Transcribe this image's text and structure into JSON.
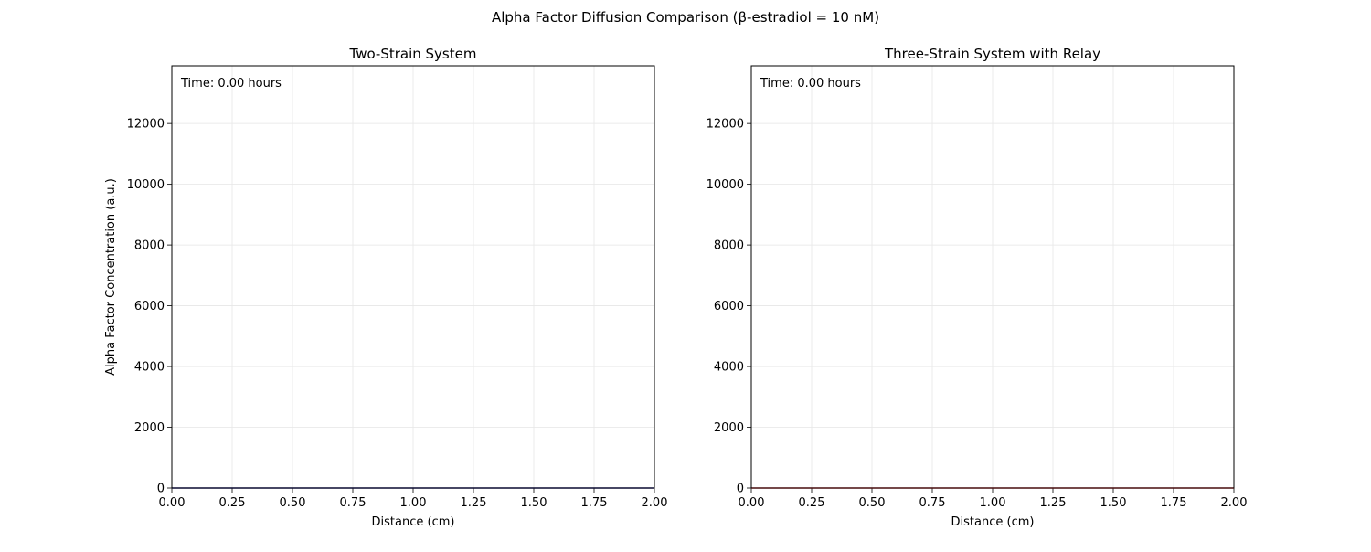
{
  "figure": {
    "suptitle": "Alpha Factor Diffusion Comparison (β-estradiol = 10 nM)"
  },
  "chart_data": [
    {
      "type": "line",
      "title": "Two-Strain System",
      "xlabel": "Distance (cm)",
      "ylabel": "Alpha Factor Concentration (a.u.)",
      "annotation": "Time: 0.00 hours",
      "xlim": [
        0,
        2.0
      ],
      "ylim": [
        0,
        13900
      ],
      "xticks": [
        0.0,
        0.25,
        0.5,
        0.75,
        1.0,
        1.25,
        1.5,
        1.75,
        2.0
      ],
      "xtick_labels": [
        "0.00",
        "0.25",
        "0.50",
        "0.75",
        "1.00",
        "1.25",
        "1.50",
        "1.75",
        "2.00"
      ],
      "yticks": [
        0,
        2000,
        4000,
        6000,
        8000,
        10000,
        12000
      ],
      "ytick_labels": [
        "0",
        "2000",
        "4000",
        "6000",
        "8000",
        "10000",
        "12000"
      ],
      "grid": true,
      "series": [
        {
          "color": "#1f1f8f",
          "x": [
            0.0,
            0.5,
            1.0,
            1.5,
            2.0
          ],
          "y": [
            0,
            0,
            0,
            0,
            0
          ]
        }
      ]
    },
    {
      "type": "line",
      "title": "Three-Strain System with Relay",
      "xlabel": "Distance (cm)",
      "ylabel": "",
      "annotation": "Time: 0.00 hours",
      "xlim": [
        0,
        2.0
      ],
      "ylim": [
        0,
        13900
      ],
      "xticks": [
        0.0,
        0.25,
        0.5,
        0.75,
        1.0,
        1.25,
        1.5,
        1.75,
        2.0
      ],
      "xtick_labels": [
        "0.00",
        "0.25",
        "0.50",
        "0.75",
        "1.00",
        "1.25",
        "1.50",
        "1.75",
        "2.00"
      ],
      "yticks": [
        0,
        2000,
        4000,
        6000,
        8000,
        10000,
        12000
      ],
      "ytick_labels": [
        "0",
        "2000",
        "4000",
        "6000",
        "8000",
        "10000",
        "12000"
      ],
      "grid": true,
      "series": [
        {
          "color": "#d62728",
          "x": [
            0.0,
            0.5,
            1.0,
            1.5,
            2.0
          ],
          "y": [
            0,
            0,
            0,
            0,
            0
          ]
        }
      ]
    }
  ]
}
